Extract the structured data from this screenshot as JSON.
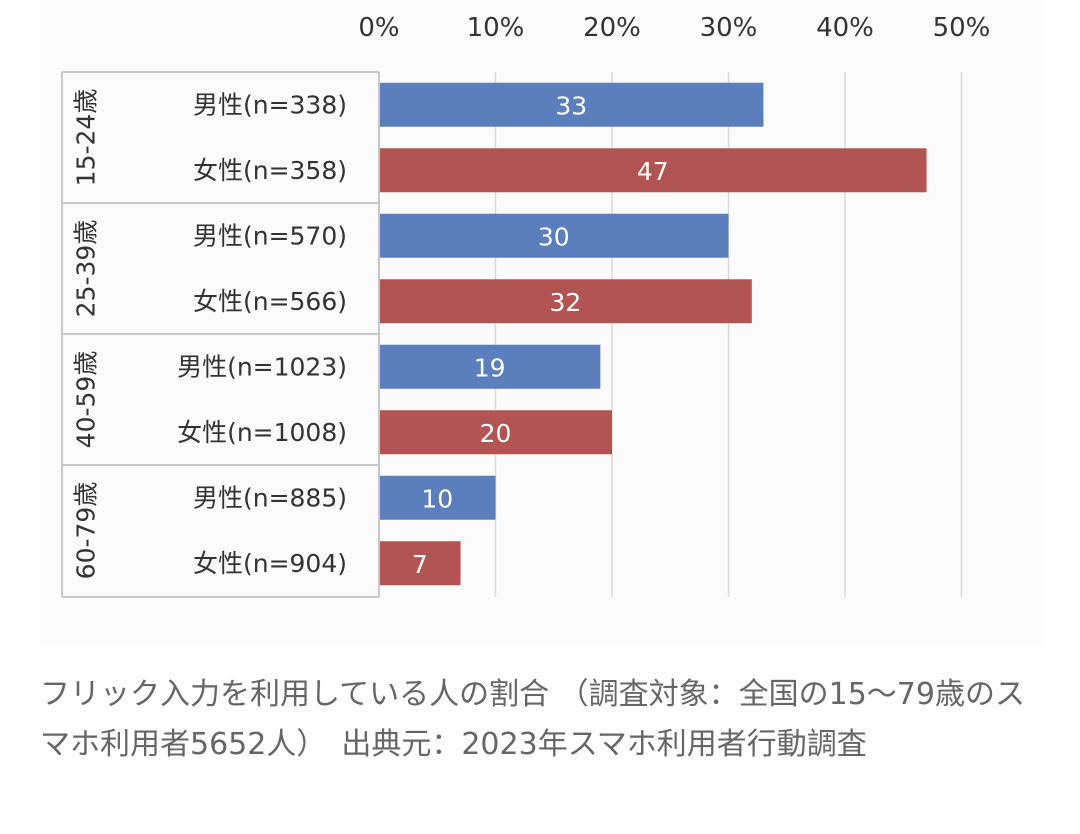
{
  "chart_data": {
    "type": "bar",
    "orientation": "horizontal",
    "x_ticks": [
      "0%",
      "10%",
      "20%",
      "30%",
      "40%",
      "50%"
    ],
    "xlim": [
      0,
      50
    ],
    "grid": true,
    "groups": [
      {
        "label": "15-24歳",
        "rows": [
          {
            "label": "男性(n=338)",
            "value": 33,
            "series": "男性"
          },
          {
            "label": "女性(n=358)",
            "value": 47,
            "series": "女性"
          }
        ]
      },
      {
        "label": "25-39歳",
        "rows": [
          {
            "label": "男性(n=570)",
            "value": 30,
            "series": "男性"
          },
          {
            "label": "女性(n=566)",
            "value": 32,
            "series": "女性"
          }
        ]
      },
      {
        "label": "40-59歳",
        "rows": [
          {
            "label": "男性(n=1023)",
            "value": 19,
            "series": "男性"
          },
          {
            "label": "女性(n=1008)",
            "value": 20,
            "series": "女性"
          }
        ]
      },
      {
        "label": "60-79歳",
        "rows": [
          {
            "label": "男性(n=885)",
            "value": 10,
            "series": "男性"
          },
          {
            "label": "女性(n=904)",
            "value": 7,
            "series": "女性"
          }
        ]
      }
    ],
    "colors": {
      "男性": "#5a7fbc",
      "女性": "#b25552"
    },
    "data_label_color": "#ffffff"
  },
  "caption": "フリック入力を利用している人の割合 （調査対象：全国の15〜79歳のスマホ利用者5652人）　出典元：2023年スマホ利用者行動調査"
}
